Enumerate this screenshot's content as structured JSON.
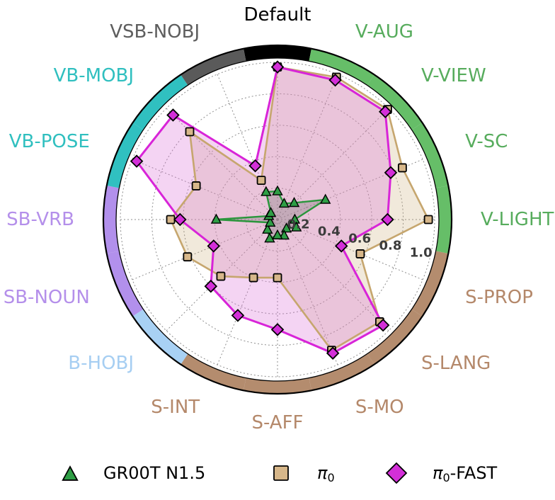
{
  "chart_data": {
    "type": "radar",
    "r_max": 1.0,
    "grid": "dashed",
    "r_ticks": {
      "values": [
        0.2,
        0.4,
        0.6,
        0.8,
        1.0
      ],
      "labels": [
        "0.2",
        "0.4",
        "0.6",
        "0.8",
        "1.0"
      ],
      "label_color": "#3c3c3c"
    },
    "categories": [
      {
        "label": "Default",
        "angle": 0.0,
        "ring_color": "#000000",
        "label_color": "#000000"
      },
      {
        "label": "V-AUG",
        "angle": 22.5,
        "ring_color": "#66BE68",
        "label_color": "#57AC5D"
      },
      {
        "label": "V-VIEW",
        "angle": 45.0,
        "ring_color": "#66BE68",
        "label_color": "#57AC5D"
      },
      {
        "label": "V-SC",
        "angle": 67.5,
        "ring_color": "#66BE68",
        "label_color": "#57AC5D"
      },
      {
        "label": "V-LIGHT",
        "angle": 90.0,
        "ring_color": "#66BE68",
        "label_color": "#57AC5D"
      },
      {
        "label": "S-PROP",
        "angle": 112.5,
        "ring_color": "#B48C6E",
        "label_color": "#B4886A"
      },
      {
        "label": "S-LANG",
        "angle": 135.0,
        "ring_color": "#B48C6E",
        "label_color": "#B4886A"
      },
      {
        "label": "S-MO",
        "angle": 157.5,
        "ring_color": "#B48C6E",
        "label_color": "#B4886A"
      },
      {
        "label": "S-AFF",
        "angle": 180.0,
        "ring_color": "#B48C6E",
        "label_color": "#B4886A"
      },
      {
        "label": "S-INT",
        "angle": 202.5,
        "ring_color": "#B48C6E",
        "label_color": "#B4886A"
      },
      {
        "label": "B-HOBJ",
        "angle": 225.0,
        "ring_color": "#A8D1F4",
        "label_color": "#A6CEF2"
      },
      {
        "label": "SB-NOUN",
        "angle": 247.5,
        "ring_color": "#B290EC",
        "label_color": "#B48FEA"
      },
      {
        "label": "SB-VRB",
        "angle": 270.0,
        "ring_color": "#B290EC",
        "label_color": "#B48FEA"
      },
      {
        "label": "VB-POSE",
        "angle": 292.5,
        "ring_color": "#30C0C0",
        "label_color": "#2FBFBF"
      },
      {
        "label": "VB-MOBJ",
        "angle": 315.0,
        "ring_color": "#30C0C0",
        "label_color": "#2FBFBF"
      },
      {
        "label": "VSB-NOBJ",
        "angle": 337.5,
        "ring_color": "#5A5A5A",
        "label_color": "#5E5E5E"
      }
    ],
    "series": [
      {
        "name": "GR00T N1.5",
        "marker": "triangle",
        "line_color": "#2A963C",
        "marker_color": "#2E9E45",
        "fill_color": "rgba(115,115,115,0.32)",
        "values": [
          0.18,
          0.11,
          0.15,
          0.33,
          0.11,
          0.13,
          0.08,
          0.11,
          0.1,
          0.13,
          0.09,
          0.05,
          0.39,
          0.06,
          0.06,
          0.19
        ]
      },
      {
        "name": "π₀",
        "marker": "square",
        "line_color": "#C6A66E",
        "marker_color": "#D7B78A",
        "fill_color": "rgba(199,166,112,0.25)",
        "values": [
          0.97,
          0.98,
          0.99,
          0.86,
          0.96,
          0.57,
          0.92,
          0.9,
          0.37,
          0.4,
          0.51,
          0.62,
          0.68,
          0.56,
          0.79,
          0.27
        ]
      },
      {
        "name": "π₀-FAST",
        "marker": "diamond",
        "line_color": "#D824D8",
        "marker_color": "#D32FD8",
        "fill_color": "rgba(219,112,214,0.30)",
        "values": [
          0.97,
          0.96,
          0.97,
          0.78,
          0.7,
          0.44,
          0.95,
          0.92,
          0.7,
          0.66,
          0.6,
          0.44,
          0.62,
          0.97,
          0.94,
          0.37
        ]
      }
    ],
    "legend": {
      "position": "bottom",
      "items": [
        {
          "label": "GR00T N1.5",
          "base": "GR00T N1.5",
          "italic_base": false,
          "sub": "",
          "rest": "",
          "marker": "triangle"
        },
        {
          "label": "π₀",
          "base": "π",
          "italic_base": true,
          "sub": "0",
          "rest": "",
          "marker": "square"
        },
        {
          "label": "π₀-FAST",
          "base": "π",
          "italic_base": true,
          "sub": "0",
          "rest": "-FAST",
          "marker": "diamond"
        }
      ]
    }
  }
}
